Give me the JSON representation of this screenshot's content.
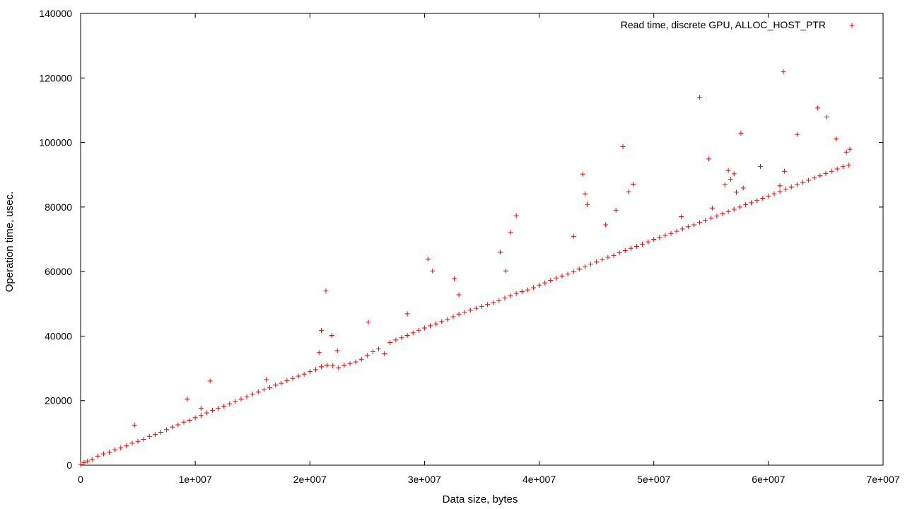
{
  "chart_data": {
    "type": "scatter",
    "xlabel": "Data size, bytes",
    "ylabel": "Operation time, usec.",
    "xlim": [
      0,
      70000000
    ],
    "ylim": [
      0,
      140000
    ],
    "x_ticks": [
      0,
      10000000,
      20000000,
      30000000,
      40000000,
      50000000,
      60000000,
      70000000
    ],
    "x_tick_labels": [
      "0",
      "1e+007",
      "2e+007",
      "3e+007",
      "4e+007",
      "5e+007",
      "6e+007",
      "7e+007"
    ],
    "y_ticks": [
      0,
      20000,
      40000,
      60000,
      80000,
      100000,
      120000,
      140000
    ],
    "y_tick_labels": [
      "0",
      "20000",
      "40000",
      "60000",
      "80000",
      "100000",
      "120000",
      "140000"
    ],
    "grid": false,
    "legend_position": "top-right",
    "marker": "+",
    "series": [
      {
        "name": "Read time, discrete GPU, ALLOC_HOST_PTR",
        "color": "#ff0000",
        "points": [
          [
            0,
            200
          ],
          [
            300000,
            800
          ],
          [
            600000,
            1300
          ],
          [
            1000000,
            1800
          ],
          [
            1500000,
            2800
          ],
          [
            2000000,
            3500
          ],
          [
            2500000,
            4000
          ],
          [
            3000000,
            4800
          ],
          [
            3500000,
            5300
          ],
          [
            4000000,
            6000
          ],
          [
            4500000,
            6800
          ],
          [
            5000000,
            7400
          ],
          [
            5500000,
            8000
          ],
          [
            6000000,
            8900
          ],
          [
            6500000,
            9500
          ],
          [
            7000000,
            10200
          ],
          [
            7500000,
            11000
          ],
          [
            8000000,
            11800
          ],
          [
            8500000,
            12500
          ],
          [
            9000000,
            13300
          ],
          [
            9500000,
            13900
          ],
          [
            10000000,
            14700
          ],
          [
            10500000,
            15400
          ],
          [
            11000000,
            16200
          ],
          [
            11500000,
            17000
          ],
          [
            12000000,
            17600
          ],
          [
            12500000,
            18300
          ],
          [
            13000000,
            19000
          ],
          [
            13500000,
            19800
          ],
          [
            14000000,
            20500
          ],
          [
            14500000,
            21200
          ],
          [
            15000000,
            22000
          ],
          [
            15500000,
            22700
          ],
          [
            16000000,
            23400
          ],
          [
            16500000,
            24000
          ],
          [
            17000000,
            24800
          ],
          [
            17500000,
            25400
          ],
          [
            18000000,
            26200
          ],
          [
            18500000,
            26900
          ],
          [
            19000000,
            27600
          ],
          [
            19500000,
            28200
          ],
          [
            20000000,
            29000
          ],
          [
            20500000,
            29600
          ],
          [
            21000000,
            30500
          ],
          [
            21500000,
            31000
          ],
          [
            22000000,
            30800
          ],
          [
            22500000,
            30200
          ],
          [
            23000000,
            31000
          ],
          [
            23500000,
            31500
          ],
          [
            24000000,
            32000
          ],
          [
            24500000,
            32800
          ],
          [
            25000000,
            34000
          ],
          [
            25500000,
            35200
          ],
          [
            26000000,
            36000
          ],
          [
            26500000,
            34500
          ],
          [
            27000000,
            38000
          ],
          [
            27500000,
            38800
          ],
          [
            28000000,
            39500
          ],
          [
            28500000,
            40200
          ],
          [
            29000000,
            41000
          ],
          [
            29500000,
            41800
          ],
          [
            30000000,
            42500
          ],
          [
            30500000,
            43200
          ],
          [
            31000000,
            43800
          ],
          [
            31500000,
            44500
          ],
          [
            32000000,
            45200
          ],
          [
            32500000,
            46000
          ],
          [
            33000000,
            46800
          ],
          [
            33500000,
            47400
          ],
          [
            34000000,
            48000
          ],
          [
            34500000,
            48600
          ],
          [
            35000000,
            49200
          ],
          [
            35500000,
            49800
          ],
          [
            36000000,
            50400
          ],
          [
            36500000,
            51000
          ],
          [
            37000000,
            51800
          ],
          [
            37500000,
            52500
          ],
          [
            38000000,
            53200
          ],
          [
            38500000,
            53800
          ],
          [
            39000000,
            54300
          ],
          [
            39500000,
            55000
          ],
          [
            40000000,
            55800
          ],
          [
            40500000,
            56500
          ],
          [
            41000000,
            57300
          ],
          [
            41500000,
            58000
          ],
          [
            42000000,
            58600
          ],
          [
            42500000,
            59200
          ],
          [
            43000000,
            60000
          ],
          [
            43500000,
            60800
          ],
          [
            44000000,
            61500
          ],
          [
            44500000,
            62300
          ],
          [
            45000000,
            63000
          ],
          [
            45500000,
            63700
          ],
          [
            46000000,
            64400
          ],
          [
            46500000,
            65000
          ],
          [
            47000000,
            65800
          ],
          [
            47500000,
            66500
          ],
          [
            48000000,
            67200
          ],
          [
            48500000,
            67800
          ],
          [
            49000000,
            68500
          ],
          [
            49500000,
            69200
          ],
          [
            50000000,
            70000
          ],
          [
            50500000,
            70600
          ],
          [
            51000000,
            71200
          ],
          [
            51500000,
            71800
          ],
          [
            52000000,
            72500
          ],
          [
            52500000,
            73200
          ],
          [
            53000000,
            73900
          ],
          [
            53500000,
            74500
          ],
          [
            54000000,
            75200
          ],
          [
            54500000,
            75900
          ],
          [
            55000000,
            76600
          ],
          [
            55500000,
            77200
          ],
          [
            56000000,
            77900
          ],
          [
            56500000,
            78600
          ],
          [
            57000000,
            79300
          ],
          [
            57500000,
            80000
          ],
          [
            58000000,
            80700
          ],
          [
            58500000,
            81300
          ],
          [
            59000000,
            82000
          ],
          [
            59500000,
            82700
          ],
          [
            60000000,
            83400
          ],
          [
            60500000,
            84100
          ],
          [
            61000000,
            84800
          ],
          [
            61500000,
            85500
          ],
          [
            62000000,
            86200
          ],
          [
            62500000,
            86900
          ],
          [
            63000000,
            87600
          ],
          [
            63500000,
            88300
          ],
          [
            64000000,
            89000
          ],
          [
            64500000,
            89700
          ],
          [
            65000000,
            90400
          ],
          [
            65500000,
            91100
          ],
          [
            66000000,
            91800
          ],
          [
            66500000,
            92500
          ],
          [
            67000000,
            93000
          ],
          [
            4700000,
            12400
          ],
          [
            9300000,
            20500
          ],
          [
            10500000,
            17600
          ],
          [
            11300000,
            26100
          ],
          [
            16200000,
            26500
          ],
          [
            20800000,
            34900
          ],
          [
            21000000,
            41700
          ],
          [
            21400000,
            54000
          ],
          [
            21900000,
            40200
          ],
          [
            22400000,
            35500
          ],
          [
            25100000,
            44300
          ],
          [
            28500000,
            46900
          ],
          [
            30300000,
            63900
          ],
          [
            30700000,
            60200
          ],
          [
            32600000,
            57800
          ],
          [
            33000000,
            52800
          ],
          [
            36600000,
            66000
          ],
          [
            37100000,
            60200
          ],
          [
            37500000,
            72100
          ],
          [
            38000000,
            77300
          ],
          [
            43000000,
            70900
          ],
          [
            43800000,
            90200
          ],
          [
            44000000,
            84100
          ],
          [
            44200000,
            80800
          ],
          [
            45800000,
            74500
          ],
          [
            46700000,
            79000
          ],
          [
            47300000,
            98700
          ],
          [
            47800000,
            84700
          ],
          [
            48200000,
            87100
          ],
          [
            52400000,
            77000
          ],
          [
            54000000,
            114000
          ],
          [
            54800000,
            94900
          ],
          [
            55100000,
            79700
          ],
          [
            56200000,
            86900
          ],
          [
            56500000,
            91300
          ],
          [
            56700000,
            88600
          ],
          [
            57000000,
            90300
          ],
          [
            57200000,
            84600
          ],
          [
            57600000,
            102900
          ],
          [
            57800000,
            85900
          ],
          [
            59300000,
            92600
          ],
          [
            61000000,
            86600
          ],
          [
            61300000,
            121900
          ],
          [
            61400000,
            91100
          ],
          [
            62500000,
            102500
          ],
          [
            64300000,
            110700
          ],
          [
            65100000,
            107900
          ],
          [
            65900000,
            101100
          ],
          [
            66800000,
            97000
          ],
          [
            67100000,
            97900
          ]
        ]
      }
    ]
  }
}
